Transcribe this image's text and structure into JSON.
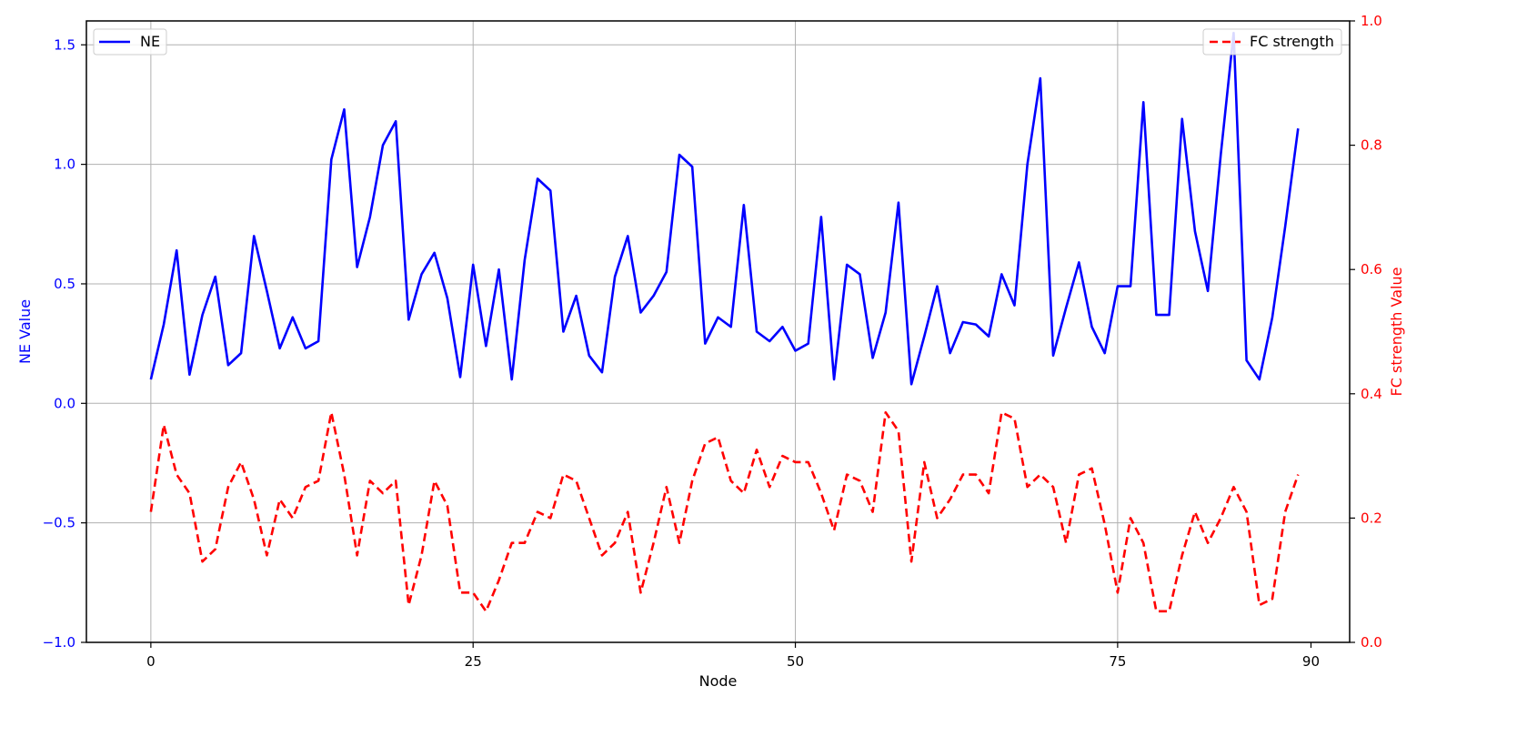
{
  "chart_data": {
    "type": "line",
    "xlabel": "Node",
    "ylabel_left": "NE Value",
    "ylabel_right": "FC strength Value",
    "xlim": [
      -5,
      93
    ],
    "ylim_left": [
      -1.0,
      1.6
    ],
    "ylim_right": [
      0.0,
      1.0
    ],
    "xticks": [
      0,
      25,
      50,
      75,
      90
    ],
    "yticks_left": [
      "−1.0",
      "−0.5",
      "0.0",
      "0.5",
      "1.0",
      "1.5"
    ],
    "yticks_left_values": [
      -1.0,
      -0.5,
      0.0,
      0.5,
      1.0,
      1.5
    ],
    "yticks_right": [
      "0.0",
      "0.2",
      "0.4",
      "0.6",
      "0.8",
      "1.0"
    ],
    "yticks_right_values": [
      0.0,
      0.2,
      0.4,
      0.6,
      0.8,
      1.0
    ],
    "grid": true,
    "colors": {
      "left_axis": "#0000ff",
      "right_axis": "#ff0000"
    },
    "series": [
      {
        "name": "NE",
        "axis": "left",
        "style": "solid",
        "color": "#0000ff",
        "legend_position": "top-left",
        "values": [
          0.1,
          0.33,
          0.64,
          0.12,
          0.37,
          0.53,
          0.16,
          0.21,
          0.7,
          0.47,
          0.23,
          0.36,
          0.23,
          0.26,
          1.02,
          1.23,
          0.57,
          0.78,
          1.08,
          1.18,
          0.35,
          0.54,
          0.63,
          0.44,
          0.11,
          0.58,
          0.24,
          0.56,
          0.1,
          0.6,
          0.94,
          0.89,
          0.3,
          0.45,
          0.2,
          0.13,
          0.53,
          0.7,
          0.38,
          0.45,
          0.55,
          1.04,
          0.99,
          0.25,
          0.36,
          0.32,
          0.83,
          0.3,
          0.26,
          0.32,
          0.22,
          0.25,
          0.78,
          0.1,
          0.58,
          0.54,
          0.19,
          0.38,
          0.84,
          0.08,
          0.28,
          0.49,
          0.21,
          0.34,
          0.33,
          0.28,
          0.54,
          0.41,
          1.0,
          1.36,
          0.2,
          0.4,
          0.59,
          0.32,
          0.21,
          0.49,
          0.49,
          1.26,
          0.37,
          0.37,
          1.19,
          0.72,
          0.47,
          1.04,
          1.55,
          0.18,
          0.1,
          0.36,
          0.74,
          1.15
        ]
      },
      {
        "name": "FC strength",
        "axis": "right",
        "style": "dashed",
        "color": "#ff0000",
        "legend_position": "top-right",
        "values": [
          0.21,
          0.35,
          0.27,
          0.24,
          0.13,
          0.15,
          0.25,
          0.29,
          0.23,
          0.14,
          0.23,
          0.2,
          0.25,
          0.26,
          0.37,
          0.27,
          0.14,
          0.26,
          0.24,
          0.26,
          0.06,
          0.14,
          0.26,
          0.22,
          0.08,
          0.08,
          0.05,
          0.1,
          0.16,
          0.16,
          0.21,
          0.2,
          0.27,
          0.26,
          0.2,
          0.14,
          0.16,
          0.21,
          0.08,
          0.16,
          0.25,
          0.16,
          0.26,
          0.32,
          0.33,
          0.26,
          0.24,
          0.31,
          0.25,
          0.3,
          0.29,
          0.29,
          0.24,
          0.18,
          0.27,
          0.26,
          0.21,
          0.37,
          0.34,
          0.13,
          0.29,
          0.2,
          0.23,
          0.27,
          0.27,
          0.24,
          0.37,
          0.36,
          0.25,
          0.27,
          0.25,
          0.16,
          0.27,
          0.28,
          0.19,
          0.08,
          0.2,
          0.16,
          0.05,
          0.05,
          0.14,
          0.21,
          0.16,
          0.2,
          0.25,
          0.21,
          0.06,
          0.07,
          0.21,
          0.27
        ]
      }
    ]
  }
}
